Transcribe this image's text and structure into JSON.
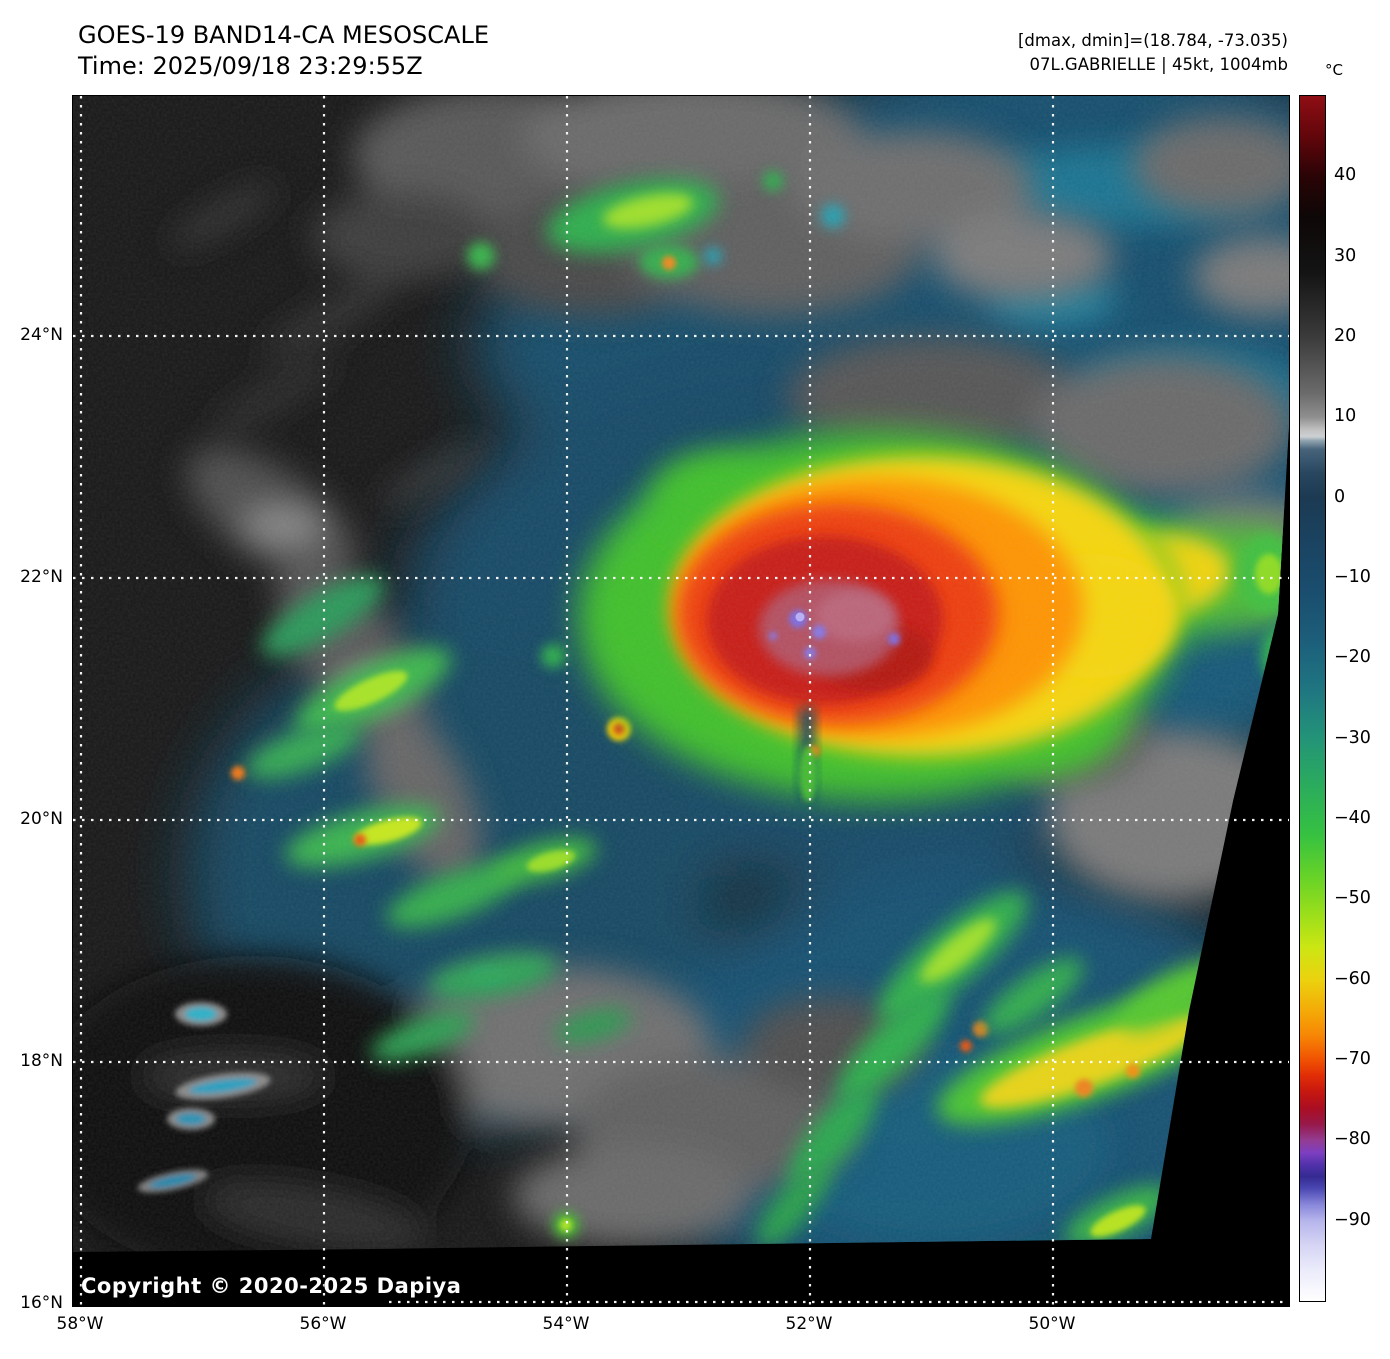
{
  "header": {
    "title": "GOES-19 BAND14-CA MESOSCALE",
    "time_line": "Time: 2025/09/18 23:29:55Z",
    "dmax_dmin_line": "[dmax, dmin]=(18.784, -73.035)",
    "storm_line": "07L.GABRIELLE | 45kt, 1004mb"
  },
  "map": {
    "copyright": "Copyright © 2020-2025 Dapiya",
    "x_tick_labels": [
      "58°W",
      "56°W",
      "54°W",
      "52°W",
      "50°W"
    ],
    "y_tick_labels": [
      "24°N",
      "22°N",
      "20°N",
      "18°N",
      "16°N"
    ]
  },
  "colorbar": {
    "unit_label": "°C",
    "vmax": 50,
    "vmin": -100,
    "ticks": [
      {
        "v": 40,
        "label": "40"
      },
      {
        "v": 30,
        "label": "30"
      },
      {
        "v": 20,
        "label": "20"
      },
      {
        "v": 10,
        "label": "10"
      },
      {
        "v": 0,
        "label": "0"
      },
      {
        "v": -10,
        "label": "−10"
      },
      {
        "v": -20,
        "label": "−20"
      },
      {
        "v": -30,
        "label": "−30"
      },
      {
        "v": -40,
        "label": "−40"
      },
      {
        "v": -50,
        "label": "−50"
      },
      {
        "v": -60,
        "label": "−60"
      },
      {
        "v": -70,
        "label": "−70"
      },
      {
        "v": -80,
        "label": "−80"
      },
      {
        "v": -90,
        "label": "−90"
      }
    ],
    "gradient_stops": [
      {
        "v": 50,
        "c": "#8e0e14"
      },
      {
        "v": 45,
        "c": "#62060b"
      },
      {
        "v": 40,
        "c": "#2a0406"
      },
      {
        "v": 35,
        "c": "#0e0707"
      },
      {
        "v": 28,
        "c": "#141414"
      },
      {
        "v": 20,
        "c": "#3b3b3b"
      },
      {
        "v": 13,
        "c": "#6b6b6b"
      },
      {
        "v": 10,
        "c": "#8f8f8f"
      },
      {
        "v": 8.4,
        "c": "#c2c2c2"
      },
      {
        "v": 7.6,
        "c": "#cdd0d2"
      },
      {
        "v": 7.1,
        "c": "#8fa3b0"
      },
      {
        "v": 6,
        "c": "#46637a"
      },
      {
        "v": 3,
        "c": "#28475f"
      },
      {
        "v": 0,
        "c": "#1c3a52"
      },
      {
        "v": -6,
        "c": "#1a4462"
      },
      {
        "v": -12,
        "c": "#1a4e6f"
      },
      {
        "v": -18,
        "c": "#1c5f7b"
      },
      {
        "v": -24,
        "c": "#1f7681"
      },
      {
        "v": -30,
        "c": "#239478"
      },
      {
        "v": -36,
        "c": "#2bac5c"
      },
      {
        "v": -42,
        "c": "#36c141"
      },
      {
        "v": -47,
        "c": "#65d228"
      },
      {
        "v": -52,
        "c": "#9cdf1a"
      },
      {
        "v": -56,
        "c": "#cce613"
      },
      {
        "v": -60,
        "c": "#ebd20e"
      },
      {
        "v": -64,
        "c": "#f4a907"
      },
      {
        "v": -67,
        "c": "#f78605"
      },
      {
        "v": -70,
        "c": "#f05102"
      },
      {
        "v": -72,
        "c": "#e12d06"
      },
      {
        "v": -74,
        "c": "#c61710"
      },
      {
        "v": -76,
        "c": "#aa0e22"
      },
      {
        "v": -78,
        "c": "#97194a"
      },
      {
        "v": -80,
        "c": "#933c92"
      },
      {
        "v": -81.5,
        "c": "#7e3fc0"
      },
      {
        "v": -83,
        "c": "#5232ab"
      },
      {
        "v": -84.5,
        "c": "#352a92"
      },
      {
        "v": -86,
        "c": "#4a48b2"
      },
      {
        "v": -88,
        "c": "#8987da"
      },
      {
        "v": -90,
        "c": "#b6b5eb"
      },
      {
        "v": -93,
        "c": "#d5d4f4"
      },
      {
        "v": -96,
        "c": "#eaeafb"
      },
      {
        "v": -100,
        "c": "#ffffff"
      }
    ]
  }
}
